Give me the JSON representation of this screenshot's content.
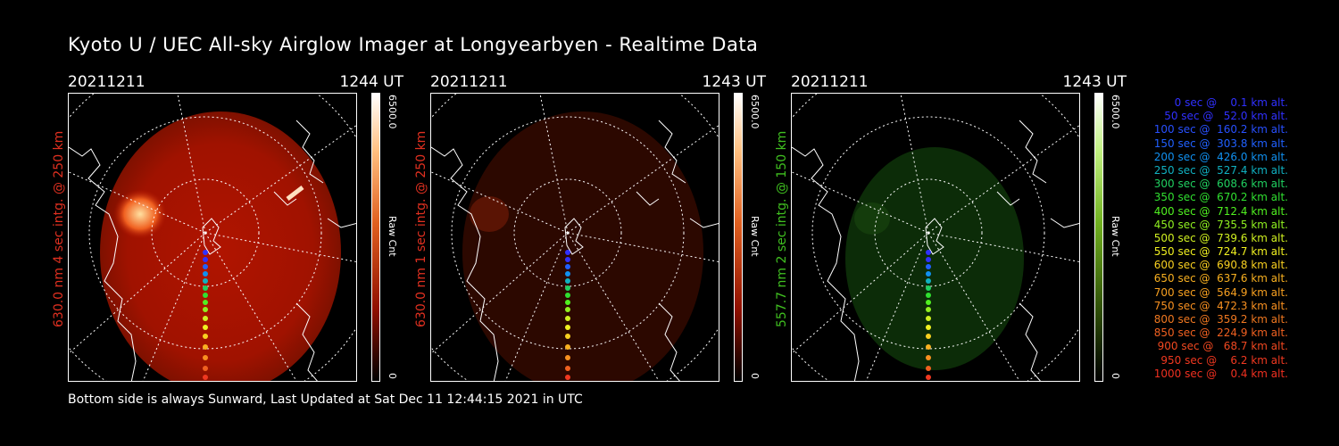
{
  "header": {
    "title": "Kyoto U / UEC All-sky Airglow Imager at Longyearbyen - Realtime Data"
  },
  "footer": {
    "text": "Bottom side is always Sunward, Last Updated at Sat Dec 11 12:44:15 2021 in UTC"
  },
  "panels": [
    {
      "date": "20211211",
      "time": "1244 UT",
      "ylabel": "630.0 nm 4 sec intg. @ 250 km",
      "ylabel_color": "#e03020",
      "cbar_max": "6500.0",
      "cbar_min": "0",
      "cbar_unit": "Raw Cnt",
      "tint": "#c01400"
    },
    {
      "date": "20211211",
      "time": "1243 UT",
      "ylabel": "630.0 nm 1 sec intg. @ 250 km",
      "ylabel_color": "#e03020",
      "cbar_max": "6500.0",
      "cbar_min": "0",
      "cbar_unit": "Raw Cnt",
      "tint": "#3a0800"
    },
    {
      "date": "20211211",
      "time": "1243 UT",
      "ylabel": "557.7 nm 2 sec intg. @ 150 km",
      "ylabel_color": "#40c020",
      "cbar_max": "6500.0",
      "cbar_min": "0",
      "cbar_unit": "Raw Cnt",
      "tint": "#0c3008"
    }
  ],
  "legend": [
    {
      "text": "   0 sec @    0.1 km alt.",
      "color": "#3030ff"
    },
    {
      "text": "  50 sec @   52.0 km alt.",
      "color": "#3030ff"
    },
    {
      "text": " 100 sec @  160.2 km alt.",
      "color": "#2850ff"
    },
    {
      "text": " 150 sec @  303.8 km alt.",
      "color": "#2060ff"
    },
    {
      "text": " 200 sec @  426.0 km alt.",
      "color": "#1090f0"
    },
    {
      "text": " 250 sec @  527.4 km alt.",
      "color": "#10b0c0"
    },
    {
      "text": " 300 sec @  608.6 km alt.",
      "color": "#20d060"
    },
    {
      "text": " 350 sec @  670.2 km alt.",
      "color": "#30e030"
    },
    {
      "text": " 400 sec @  712.4 km alt.",
      "color": "#50f020"
    },
    {
      "text": " 450 sec @  735.5 km alt.",
      "color": "#90f020"
    },
    {
      "text": " 500 sec @  739.6 km alt.",
      "color": "#d0f020"
    },
    {
      "text": " 550 sec @  724.7 km alt.",
      "color": "#f0f020"
    },
    {
      "text": " 600 sec @  690.8 km alt.",
      "color": "#f8d020"
    },
    {
      "text": " 650 sec @  637.6 km alt.",
      "color": "#f8b020"
    },
    {
      "text": " 700 sec @  564.9 km alt.",
      "color": "#f8a020"
    },
    {
      "text": " 750 sec @  472.3 km alt.",
      "color": "#f89020"
    },
    {
      "text": " 800 sec @  359.2 km alt.",
      "color": "#f07820"
    },
    {
      "text": " 850 sec @  224.9 km alt.",
      "color": "#f06020"
    },
    {
      "text": " 900 sec @   68.7 km alt.",
      "color": "#f04820"
    },
    {
      "text": " 950 sec @    6.2 km alt.",
      "color": "#f03820"
    },
    {
      "text": "1000 sec @    0.4 km alt.",
      "color": "#f03020"
    }
  ]
}
